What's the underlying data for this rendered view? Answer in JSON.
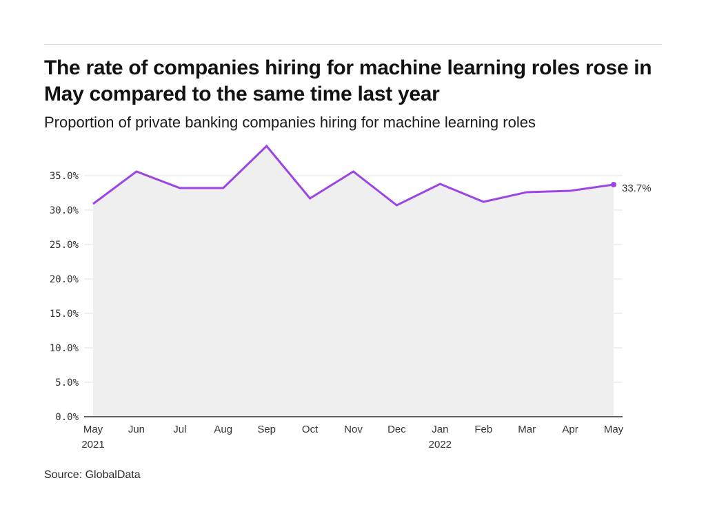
{
  "title": "The rate of companies hiring for machine learning roles rose in May compared to the same time last year",
  "subtitle": "Proportion of private banking companies hiring for machine learning roles",
  "source": "Source: GlobalData",
  "chart_data": {
    "type": "area",
    "title": "The rate of companies hiring for machine learning roles rose in May compared to the same time last year",
    "subtitle": "Proportion of private banking companies hiring for machine learning roles",
    "xlabel": "",
    "ylabel": "",
    "categories": [
      "May",
      "Jun",
      "Jul",
      "Aug",
      "Sep",
      "Oct",
      "Nov",
      "Dec",
      "Jan",
      "Feb",
      "Mar",
      "Apr",
      "May"
    ],
    "year_labels": [
      "2021",
      "",
      "",
      "",
      "",
      "",
      "",
      "",
      "2022",
      "",
      "",
      "",
      ""
    ],
    "series": [
      {
        "name": "Private banking",
        "values": [
          30.9,
          35.6,
          33.2,
          33.2,
          39.3,
          31.7,
          35.6,
          30.7,
          33.8,
          31.2,
          32.6,
          32.8,
          33.7
        ]
      }
    ],
    "ylim": [
      0,
      40
    ],
    "yticks": [
      0,
      5,
      10,
      15,
      20,
      25,
      30,
      35
    ],
    "ytick_labels": [
      "0.0%",
      "5.0%",
      "10.0%",
      "15.0%",
      "20.0%",
      "25.0%",
      "30.0%",
      "35.0%"
    ],
    "end_label": "33.7%",
    "grid": true,
    "colors": {
      "line": "#9b45e4",
      "area": "#efeff0",
      "grid": "#e2e2e2",
      "axis": "#333333"
    }
  }
}
